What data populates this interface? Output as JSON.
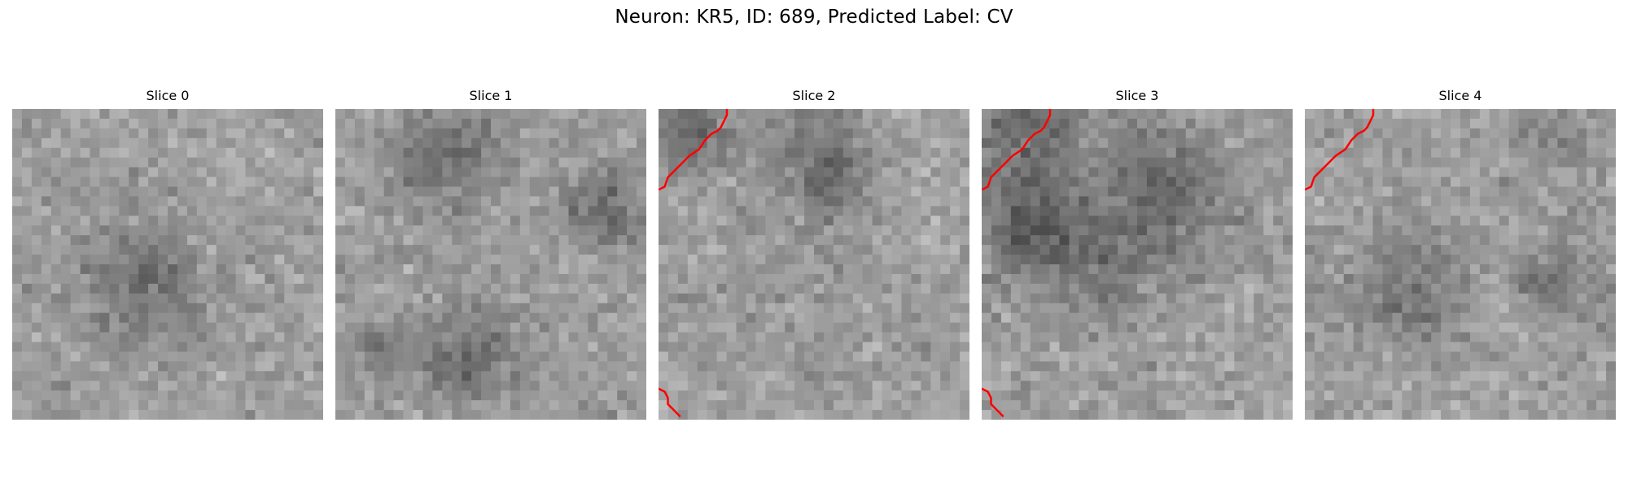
{
  "figure": {
    "title": "Neuron: KR5, ID: 689, Predicted Label: CV"
  },
  "panels": [
    {
      "title": "Slice 0",
      "seed": 11,
      "dark_blobs": [
        [
          13,
          18,
          6,
          0.18
        ]
      ],
      "contours": []
    },
    {
      "title": "Slice 1",
      "seed": 23,
      "dark_blobs": [
        [
          12,
          4,
          6,
          0.16
        ],
        [
          27,
          10,
          4,
          0.22
        ],
        [
          13,
          25,
          5,
          0.18
        ],
        [
          4,
          24,
          3,
          0.12
        ]
      ],
      "contours": []
    },
    {
      "title": "Slice 2",
      "seed": 37,
      "dark_blobs": [
        [
          3,
          2,
          4,
          0.22
        ],
        [
          15,
          4,
          6,
          0.12
        ],
        [
          17,
          7,
          3,
          0.14
        ]
      ],
      "contours": [
        "top-left",
        "bottom-left"
      ]
    },
    {
      "title": "Slice 3",
      "seed": 41,
      "dark_blobs": [
        [
          4,
          2,
          5,
          0.24
        ],
        [
          18,
          7,
          7,
          0.2
        ],
        [
          5,
          12,
          5,
          0.24
        ],
        [
          12,
          16,
          6,
          0.12
        ]
      ],
      "contours": [
        "top-left",
        "bottom-left"
      ]
    },
    {
      "title": "Slice 4",
      "seed": 53,
      "dark_blobs": [
        [
          10,
          18,
          6,
          0.14
        ],
        [
          25,
          17,
          4,
          0.16
        ],
        [
          26,
          3,
          4,
          0.08
        ]
      ],
      "contours": [
        "top-left"
      ]
    }
  ],
  "style": {
    "contour_color": "#ff0000",
    "colormap": "gray"
  }
}
